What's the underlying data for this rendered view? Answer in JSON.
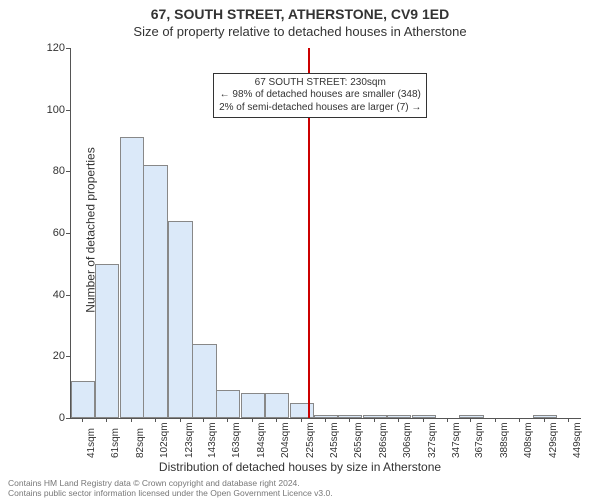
{
  "chart": {
    "type": "histogram",
    "title": "67, SOUTH STREET, ATHERSTONE, CV9 1ED",
    "subtitle": "Size of property relative to detached houses in Atherstone",
    "xlabel": "Distribution of detached houses by size in Atherstone",
    "ylabel": "Number of detached properties",
    "background_color": "#ffffff",
    "axis_color": "#555555",
    "text_color": "#333333",
    "title_fontsize": 14,
    "subtitle_fontsize": 13,
    "label_fontsize": 12,
    "tick_fontsize": 11,
    "xlim": [
      31,
      459
    ],
    "ylim": [
      0,
      120
    ],
    "yticks": [
      0,
      20,
      40,
      60,
      80,
      100,
      120
    ],
    "xticks": [
      41,
      61,
      82,
      102,
      123,
      143,
      163,
      184,
      204,
      225,
      245,
      265,
      286,
      306,
      327,
      347,
      367,
      388,
      408,
      429,
      449
    ],
    "xtick_suffix": "sqm",
    "bar_fill": "#dbe9f9",
    "bar_border": "#888888",
    "bar_width_data": 20.4,
    "bars": [
      {
        "x": 41,
        "y": 12
      },
      {
        "x": 61,
        "y": 50
      },
      {
        "x": 82,
        "y": 91
      },
      {
        "x": 102,
        "y": 82
      },
      {
        "x": 123,
        "y": 64
      },
      {
        "x": 143,
        "y": 24
      },
      {
        "x": 163,
        "y": 9
      },
      {
        "x": 184,
        "y": 8
      },
      {
        "x": 204,
        "y": 8
      },
      {
        "x": 225,
        "y": 5
      },
      {
        "x": 245,
        "y": 1
      },
      {
        "x": 265,
        "y": 1
      },
      {
        "x": 286,
        "y": 1
      },
      {
        "x": 306,
        "y": 1
      },
      {
        "x": 327,
        "y": 1
      },
      {
        "x": 347,
        "y": 0
      },
      {
        "x": 367,
        "y": 1
      },
      {
        "x": 388,
        "y": 0
      },
      {
        "x": 408,
        "y": 0
      },
      {
        "x": 429,
        "y": 1
      },
      {
        "x": 449,
        "y": 0
      }
    ],
    "vline": {
      "x": 230,
      "color": "#cc0000",
      "width": 2
    },
    "annotation": {
      "line1": "67 SOUTH STREET: 230sqm",
      "line2": "← 98% of detached houses are smaller (348)",
      "line3": "2% of semi-detached houses are larger (7) →",
      "border_color": "#333333",
      "bg_color": "#ffffff",
      "fontsize": 10,
      "x_data": 235,
      "y_data": 112
    }
  },
  "footer": {
    "line1": "Contains HM Land Registry data © Crown copyright and database right 2024.",
    "line2": "Contains public sector information licensed under the Open Government Licence v3.0.",
    "color": "#777777",
    "fontsize": 8.5
  }
}
